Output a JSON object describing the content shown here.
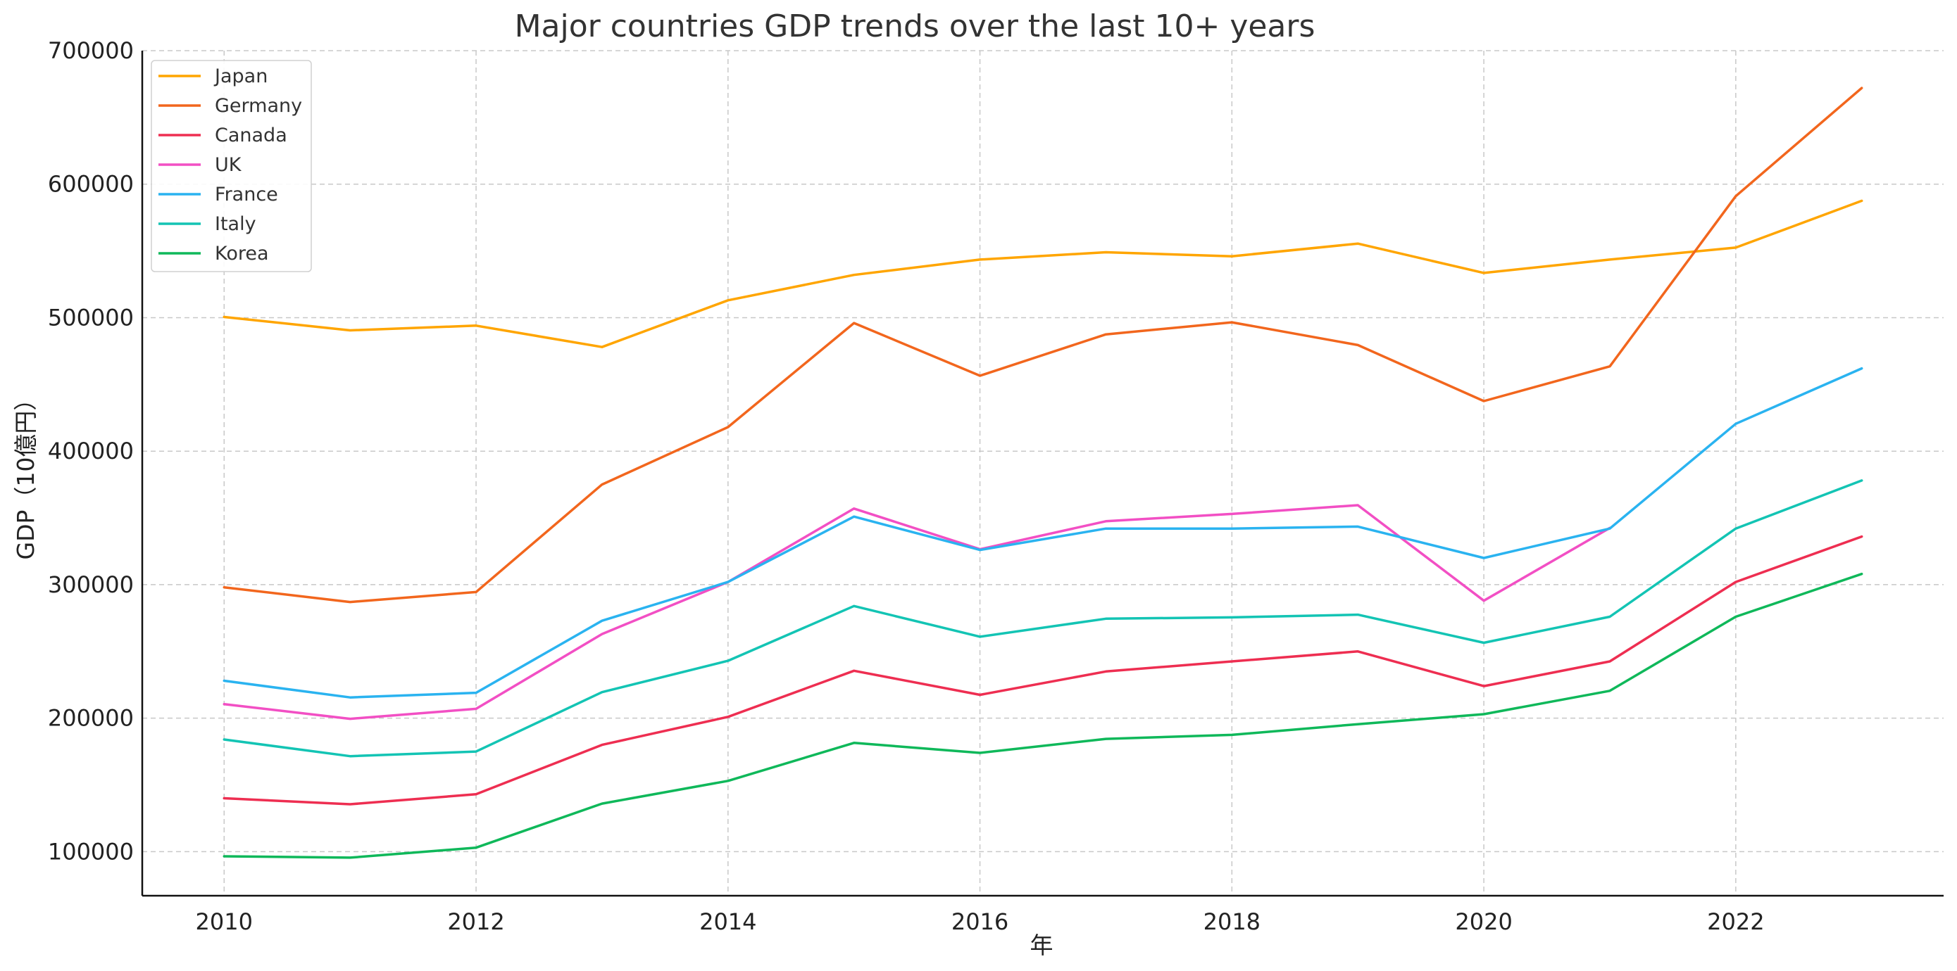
{
  "chart_data": {
    "type": "line",
    "title": "Major countries GDP trends over the last 10+ years",
    "xlabel": "年",
    "ylabel": "GDP（10億円）",
    "x": [
      2010,
      2011,
      2012,
      2013,
      2014,
      2015,
      2016,
      2017,
      2018,
      2019,
      2020,
      2021,
      2022,
      2023
    ],
    "xlim": [
      2009.35,
      2023.65
    ],
    "ylim": [
      67000,
      700000
    ],
    "xticks": [
      "2010",
      "2012",
      "2014",
      "2016",
      "2018",
      "2020",
      "2022"
    ],
    "yticks": [
      "100000",
      "200000",
      "300000",
      "400000",
      "500000",
      "600000",
      "700000"
    ],
    "grid": true,
    "legend_position": "top-left",
    "series": [
      {
        "name": "Japan",
        "color": "#FFA500",
        "values": [
          500500,
          490500,
          494000,
          478000,
          513000,
          532000,
          543500,
          549000,
          546000,
          555500,
          533500,
          543500,
          552500,
          587500
        ]
      },
      {
        "name": "Germany",
        "color": "#F2661D",
        "values": [
          298000,
          287000,
          294500,
          375000,
          418000,
          496000,
          456500,
          487500,
          496500,
          479500,
          437500,
          463500,
          591000,
          672000
        ]
      },
      {
        "name": "Canada",
        "color": "#EE2E51",
        "values": [
          140000,
          135500,
          143000,
          180000,
          201000,
          235500,
          217500,
          235000,
          242500,
          250000,
          224000,
          242500,
          302000,
          336000
        ]
      },
      {
        "name": "UK",
        "color": "#F24FC4",
        "values": [
          210500,
          199500,
          207000,
          263000,
          302000,
          357000,
          326500,
          347500,
          353000,
          359500,
          288000,
          342500,
          null,
          null
        ]
      },
      {
        "name": "France",
        "color": "#2AB3F0",
        "values": [
          228000,
          215500,
          219000,
          273000,
          302000,
          351000,
          326000,
          342000,
          342000,
          343500,
          320000,
          342000,
          420500,
          462000
        ]
      },
      {
        "name": "Italy",
        "color": "#13C4B4",
        "values": [
          184000,
          171500,
          175000,
          219500,
          243000,
          284000,
          261000,
          274500,
          275500,
          277500,
          256500,
          276000,
          342000,
          378000
        ]
      },
      {
        "name": "Korea",
        "color": "#0FB85A",
        "values": [
          96500,
          95500,
          103000,
          136000,
          153000,
          181500,
          174000,
          184500,
          187500,
          195500,
          203000,
          220500,
          276000,
          308000
        ]
      }
    ]
  }
}
